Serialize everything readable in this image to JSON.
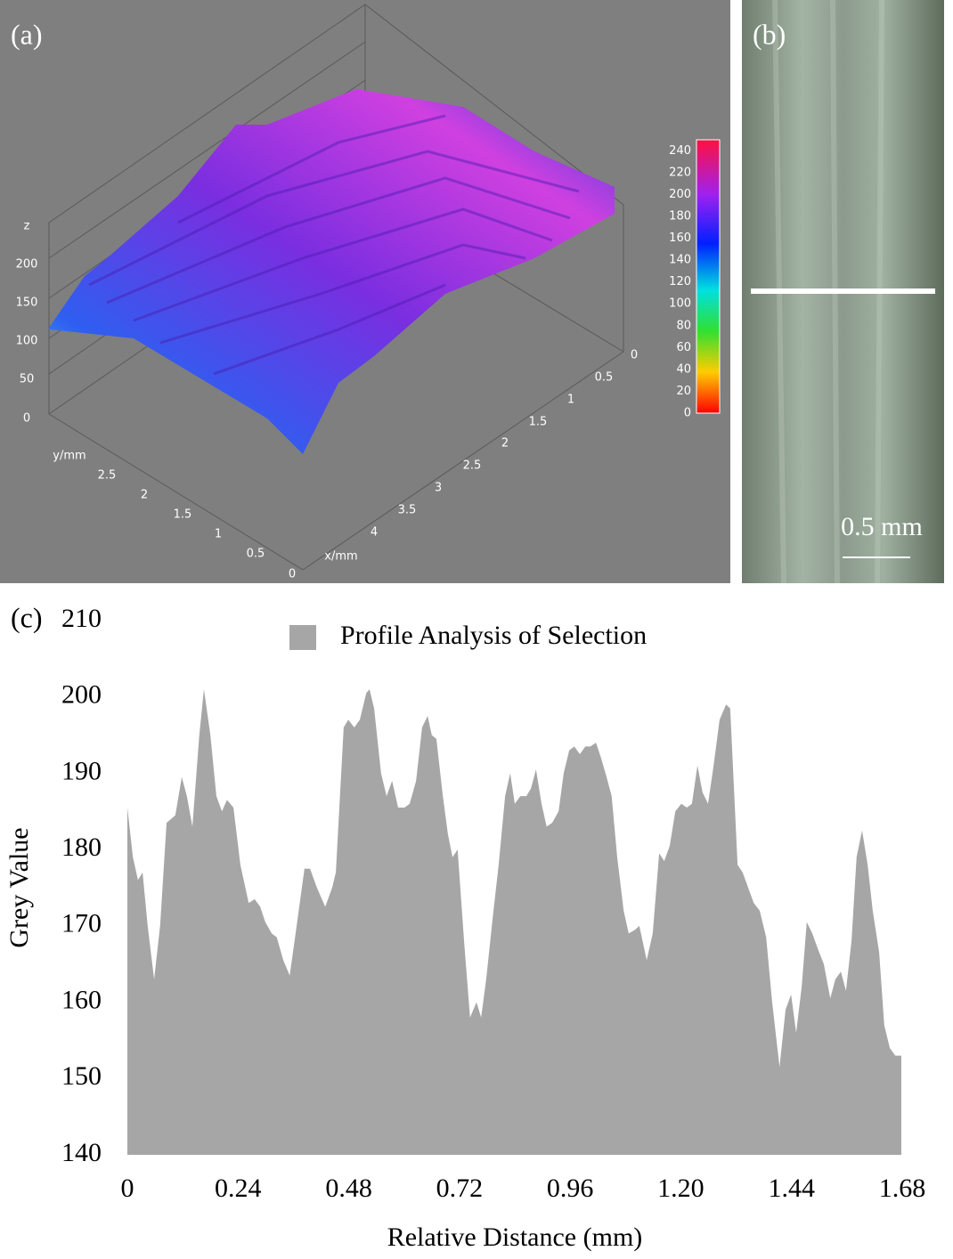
{
  "panel_a": {
    "label": "(a)",
    "z_label": "z",
    "z_ticks": [
      0,
      50,
      100,
      150,
      200
    ],
    "y_label": "y/mm",
    "y_ticks": [
      2.5,
      2,
      1.5,
      1,
      0.5,
      0
    ],
    "x_label": "x/mm",
    "x_ticks": [
      0,
      0.5,
      1,
      1.5,
      2,
      2.5,
      3,
      3.5,
      4
    ],
    "colorbar_ticks": [
      0,
      20,
      40,
      60,
      80,
      100,
      120,
      140,
      160,
      180,
      200,
      220,
      240
    ]
  },
  "panel_b": {
    "label": "(b)",
    "scale_bar": "0.5 mm"
  },
  "chart_data": {
    "type": "area",
    "panel_label": "(c)",
    "xlabel": "Relative Distance (mm)",
    "ylabel": "Grey Value",
    "series": [
      {
        "name": "Profile Analysis of Selection",
        "color": "#a6a6a6",
        "x": [
          0,
          0.012,
          0.023,
          0.033,
          0.044,
          0.058,
          0.071,
          0.085,
          0.104,
          0.118,
          0.129,
          0.141,
          0.156,
          0.166,
          0.18,
          0.193,
          0.205,
          0.216,
          0.23,
          0.245,
          0.263,
          0.276,
          0.288,
          0.299,
          0.313,
          0.324,
          0.338,
          0.352,
          0.367,
          0.384,
          0.396,
          0.411,
          0.429,
          0.444,
          0.452,
          0.469,
          0.479,
          0.492,
          0.504,
          0.518,
          0.525,
          0.535,
          0.55,
          0.562,
          0.574,
          0.587,
          0.601,
          0.612,
          0.626,
          0.639,
          0.651,
          0.66,
          0.67,
          0.684,
          0.695,
          0.705,
          0.716,
          0.73,
          0.743,
          0.757,
          0.767,
          0.778,
          0.792,
          0.805,
          0.819,
          0.83,
          0.84,
          0.852,
          0.865,
          0.875,
          0.886,
          0.898,
          0.909,
          0.921,
          0.935,
          0.946,
          0.958,
          0.969,
          0.981,
          0.993,
          1.004,
          1.016,
          1.027,
          1.039,
          1.05,
          1.062,
          1.076,
          1.087,
          1.101,
          1.11,
          1.126,
          1.139,
          1.153,
          1.164,
          1.176,
          1.188,
          1.201,
          1.213,
          1.224,
          1.236,
          1.247,
          1.259,
          1.271,
          1.284,
          1.298,
          1.307,
          1.323,
          1.334,
          1.346,
          1.358,
          1.371,
          1.385,
          1.398,
          1.414,
          1.427,
          1.439,
          1.45,
          1.462,
          1.473,
          1.485,
          1.497,
          1.51,
          1.524,
          1.535,
          1.547,
          1.558,
          1.57,
          1.581,
          1.593,
          1.605,
          1.616,
          1.63,
          1.641,
          1.653,
          1.665,
          1.678
        ],
        "values": [
          185.5,
          179,
          176,
          177,
          170,
          163,
          170,
          183.5,
          184.5,
          189.5,
          187,
          183,
          195,
          201,
          195,
          187,
          185,
          186.5,
          185.5,
          178,
          173,
          173.5,
          172.5,
          170.5,
          169,
          168.5,
          165.5,
          163.5,
          170,
          177.5,
          177.5,
          175,
          172.5,
          175,
          177,
          196,
          197,
          196,
          197,
          200.5,
          201,
          198.5,
          190,
          187,
          189,
          185.5,
          185.5,
          186,
          189,
          196,
          197.5,
          195,
          194.5,
          187,
          182,
          179,
          180,
          168,
          158,
          160,
          158,
          163,
          171,
          178,
          187,
          190,
          186,
          187,
          187,
          188,
          190.5,
          186,
          183,
          183.5,
          185,
          190,
          193,
          193.5,
          192.5,
          193.5,
          193.5,
          194,
          192,
          189.5,
          187,
          179,
          172,
          169,
          169.5,
          170,
          165.5,
          169,
          179.5,
          178.5,
          180.5,
          185,
          186,
          185.5,
          186,
          191,
          187.5,
          186,
          191,
          197,
          199,
          198.5,
          178,
          177,
          175,
          173,
          172,
          168.5,
          160,
          151.5,
          159,
          161,
          156,
          162,
          170.5,
          169,
          167,
          165,
          160.5,
          163,
          164,
          161.5,
          168,
          179,
          182.5,
          178,
          172,
          166.5,
          157,
          154,
          153,
          153
        ]
      }
    ],
    "xlim": [
      0,
      1.68
    ],
    "ylim": [
      140,
      210
    ],
    "xticks": [
      0,
      0.24,
      0.48,
      0.72,
      0.96,
      {
        "value": 1.2,
        "label": "1.20"
      },
      1.44,
      1.68
    ],
    "yticks": [
      140,
      150,
      160,
      170,
      180,
      190,
      200,
      210
    ],
    "legend": "top"
  }
}
